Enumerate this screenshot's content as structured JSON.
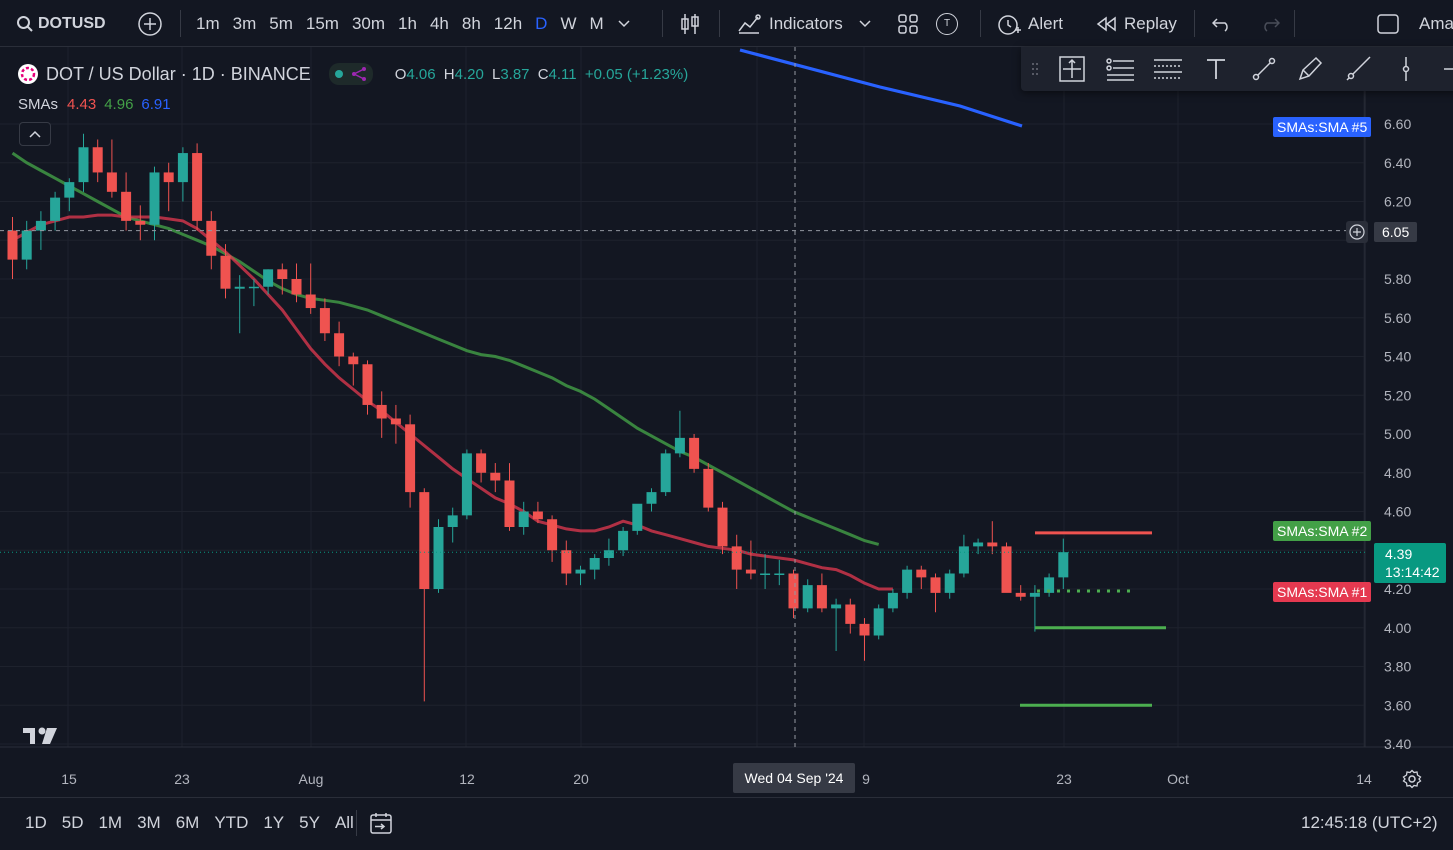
{
  "toolbar": {
    "symbol": "DOTUSD",
    "intervals": [
      "1m",
      "3m",
      "5m",
      "15m",
      "30m",
      "1h",
      "4h",
      "8h",
      "12h",
      "D",
      "W",
      "M"
    ],
    "active_interval": "D",
    "indicators_label": "Indicators",
    "alert_label": "Alert",
    "replay_label": "Replay",
    "t_badge": "T",
    "cut_label": "Ama"
  },
  "legend": {
    "title": "DOT / US Dollar · 1D · BINANCE",
    "o_key": "O",
    "o_val": "4.06",
    "h_key": "H",
    "h_val": "4.20",
    "l_key": "L",
    "l_val": "3.87",
    "c_key": "C",
    "c_val": "4.11",
    "change": "+0.05 (+1.23%)",
    "sma_label": "SMAs",
    "sma1": "4.43",
    "sma2": "4.96",
    "sma3": "6.91"
  },
  "colors": {
    "up": "#26a69a",
    "down": "#ef5350",
    "sma1": "#e53950",
    "sma2": "#43a047",
    "sma3": "#2962ff",
    "bg": "#131722",
    "grid": "#1e222d"
  },
  "price_axis": {
    "ticks": [
      "6.60",
      "6.40",
      "6.20",
      "6.05",
      "5.80",
      "5.60",
      "5.40",
      "5.20",
      "5.00",
      "4.80",
      "4.60",
      "4.39",
      "4.20",
      "4.00",
      "3.80",
      "3.60",
      "3.40"
    ],
    "crosshair_price": "6.05",
    "last_price": "4.39",
    "countdown": "13:14:42",
    "tag_sma5": "SMAs:SMA #5",
    "tag_sma2": "SMAs:SMA #2",
    "tag_sma1": "SMAs:SMA #1"
  },
  "time_axis": {
    "ticks": [
      "15",
      "23",
      "Aug",
      "12",
      "20",
      "9",
      "23",
      "Oct",
      "14"
    ],
    "crosshair_date": "Wed 04 Sep '24"
  },
  "bottom": {
    "ranges": [
      "1D",
      "5D",
      "1M",
      "3M",
      "6M",
      "YTD",
      "1Y",
      "5Y",
      "All"
    ],
    "clock": "12:45:18 (UTC+2)"
  },
  "chart_data": {
    "type": "candlestick",
    "symbol": "DOT / US Dollar",
    "timeframe": "1D",
    "exchange": "BINANCE",
    "ylim": [
      3.35,
      6.72
    ],
    "candles": [
      {
        "o": 6.05,
        "h": 6.12,
        "l": 5.8,
        "c": 5.9
      },
      {
        "o": 5.9,
        "h": 6.1,
        "l": 5.85,
        "c": 6.05
      },
      {
        "o": 6.05,
        "h": 6.15,
        "l": 5.95,
        "c": 6.1
      },
      {
        "o": 6.1,
        "h": 6.25,
        "l": 6.05,
        "c": 6.22
      },
      {
        "o": 6.22,
        "h": 6.32,
        "l": 6.15,
        "c": 6.3
      },
      {
        "o": 6.3,
        "h": 6.55,
        "l": 6.25,
        "c": 6.48
      },
      {
        "o": 6.48,
        "h": 6.52,
        "l": 6.3,
        "c": 6.35
      },
      {
        "o": 6.35,
        "h": 6.52,
        "l": 6.22,
        "c": 6.25
      },
      {
        "o": 6.25,
        "h": 6.35,
        "l": 6.05,
        "c": 6.1
      },
      {
        "o": 6.1,
        "h": 6.18,
        "l": 6.0,
        "c": 6.08
      },
      {
        "o": 6.08,
        "h": 6.38,
        "l": 6.0,
        "c": 6.35
      },
      {
        "o": 6.35,
        "h": 6.4,
        "l": 6.15,
        "c": 6.3
      },
      {
        "o": 6.3,
        "h": 6.48,
        "l": 6.2,
        "c": 6.45
      },
      {
        "o": 6.45,
        "h": 6.5,
        "l": 6.05,
        "c": 6.1
      },
      {
        "o": 6.1,
        "h": 6.15,
        "l": 5.85,
        "c": 5.92
      },
      {
        "o": 5.92,
        "h": 5.98,
        "l": 5.7,
        "c": 5.75
      },
      {
        "o": 5.75,
        "h": 5.82,
        "l": 5.52,
        "c": 5.76
      },
      {
        "o": 5.76,
        "h": 5.8,
        "l": 5.66,
        "c": 5.76
      },
      {
        "o": 5.76,
        "h": 5.85,
        "l": 5.72,
        "c": 5.85
      },
      {
        "o": 5.85,
        "h": 5.88,
        "l": 5.72,
        "c": 5.8
      },
      {
        "o": 5.8,
        "h": 5.88,
        "l": 5.68,
        "c": 5.72
      },
      {
        "o": 5.72,
        "h": 5.88,
        "l": 5.62,
        "c": 5.65
      },
      {
        "o": 5.65,
        "h": 5.7,
        "l": 5.48,
        "c": 5.52
      },
      {
        "o": 5.52,
        "h": 5.58,
        "l": 5.35,
        "c": 5.4
      },
      {
        "o": 5.4,
        "h": 5.42,
        "l": 5.25,
        "c": 5.36
      },
      {
        "o": 5.36,
        "h": 5.38,
        "l": 5.1,
        "c": 5.15
      },
      {
        "o": 5.15,
        "h": 5.22,
        "l": 4.98,
        "c": 5.08
      },
      {
        "o": 5.08,
        "h": 5.15,
        "l": 4.95,
        "c": 5.05
      },
      {
        "o": 5.05,
        "h": 5.1,
        "l": 4.62,
        "c": 4.7
      },
      {
        "o": 4.7,
        "h": 4.72,
        "l": 3.62,
        "c": 4.2
      },
      {
        "o": 4.2,
        "h": 4.56,
        "l": 4.18,
        "c": 4.52
      },
      {
        "o": 4.52,
        "h": 4.62,
        "l": 4.44,
        "c": 4.58
      },
      {
        "o": 4.58,
        "h": 4.92,
        "l": 4.56,
        "c": 4.9
      },
      {
        "o": 4.9,
        "h": 4.92,
        "l": 4.75,
        "c": 4.8
      },
      {
        "o": 4.8,
        "h": 4.85,
        "l": 4.7,
        "c": 4.76
      },
      {
        "o": 4.76,
        "h": 4.85,
        "l": 4.5,
        "c": 4.52
      },
      {
        "o": 4.52,
        "h": 4.65,
        "l": 4.48,
        "c": 4.6
      },
      {
        "o": 4.6,
        "h": 4.65,
        "l": 4.54,
        "c": 4.56
      },
      {
        "o": 4.56,
        "h": 4.58,
        "l": 4.34,
        "c": 4.4
      },
      {
        "o": 4.4,
        "h": 4.45,
        "l": 4.22,
        "c": 4.28
      },
      {
        "o": 4.28,
        "h": 4.32,
        "l": 4.22,
        "c": 4.3
      },
      {
        "o": 4.3,
        "h": 4.38,
        "l": 4.25,
        "c": 4.36
      },
      {
        "o": 4.36,
        "h": 4.46,
        "l": 4.32,
        "c": 4.4
      },
      {
        "o": 4.4,
        "h": 4.52,
        "l": 4.37,
        "c": 4.5
      },
      {
        "o": 4.5,
        "h": 4.62,
        "l": 4.48,
        "c": 4.64
      },
      {
        "o": 4.64,
        "h": 4.72,
        "l": 4.6,
        "c": 4.7
      },
      {
        "o": 4.7,
        "h": 4.92,
        "l": 4.68,
        "c": 4.9
      },
      {
        "o": 4.9,
        "h": 5.12,
        "l": 4.88,
        "c": 4.98
      },
      {
        "o": 4.98,
        "h": 5.0,
        "l": 4.8,
        "c": 4.82
      },
      {
        "o": 4.82,
        "h": 4.85,
        "l": 4.6,
        "c": 4.62
      },
      {
        "o": 4.62,
        "h": 4.65,
        "l": 4.38,
        "c": 4.42
      },
      {
        "o": 4.42,
        "h": 4.48,
        "l": 4.2,
        "c": 4.3
      },
      {
        "o": 4.3,
        "h": 4.45,
        "l": 4.25,
        "c": 4.28
      },
      {
        "o": 4.28,
        "h": 4.38,
        "l": 4.2,
        "c": 4.28
      },
      {
        "o": 4.28,
        "h": 4.35,
        "l": 4.22,
        "c": 4.28
      },
      {
        "o": 4.28,
        "h": 4.3,
        "l": 4.05,
        "c": 4.1
      },
      {
        "o": 4.1,
        "h": 4.25,
        "l": 4.08,
        "c": 4.22
      },
      {
        "o": 4.22,
        "h": 4.28,
        "l": 4.08,
        "c": 4.1
      },
      {
        "o": 4.1,
        "h": 4.15,
        "l": 3.88,
        "c": 4.12
      },
      {
        "o": 4.12,
        "h": 4.15,
        "l": 3.97,
        "c": 4.02
      },
      {
        "o": 4.02,
        "h": 4.05,
        "l": 3.83,
        "c": 3.96
      },
      {
        "o": 3.96,
        "h": 4.12,
        "l": 3.94,
        "c": 4.1
      },
      {
        "o": 4.1,
        "h": 4.2,
        "l": 4.08,
        "c": 4.18
      },
      {
        "o": 4.18,
        "h": 4.32,
        "l": 4.15,
        "c": 4.3
      },
      {
        "o": 4.3,
        "h": 4.32,
        "l": 4.2,
        "c": 4.26
      },
      {
        "o": 4.26,
        "h": 4.28,
        "l": 4.08,
        "c": 4.18
      },
      {
        "o": 4.18,
        "h": 4.3,
        "l": 4.15,
        "c": 4.28
      },
      {
        "o": 4.28,
        "h": 4.48,
        "l": 4.26,
        "c": 4.42
      },
      {
        "o": 4.42,
        "h": 4.46,
        "l": 4.38,
        "c": 4.44
      },
      {
        "o": 4.44,
        "h": 4.55,
        "l": 4.38,
        "c": 4.42
      },
      {
        "o": 4.42,
        "h": 4.44,
        "l": 4.2,
        "c": 4.18
      },
      {
        "o": 4.18,
        "h": 4.22,
        "l": 4.14,
        "c": 4.16
      },
      {
        "o": 4.16,
        "h": 4.22,
        "l": 3.98,
        "c": 4.18
      },
      {
        "o": 4.18,
        "h": 4.28,
        "l": 4.16,
        "c": 4.26
      },
      {
        "o": 4.26,
        "h": 4.46,
        "l": 4.2,
        "c": 4.39
      }
    ],
    "sma1": [
      6.0,
      6.04,
      6.08,
      6.1,
      6.12,
      6.12,
      6.13,
      6.13,
      6.12,
      6.12,
      6.12,
      6.11,
      6.1,
      6.06,
      6.0,
      5.94,
      5.87,
      5.8,
      5.72,
      5.64,
      5.54,
      5.44,
      5.36,
      5.29,
      5.23,
      5.17,
      5.12,
      5.06,
      5.0,
      4.94,
      4.88,
      4.82,
      4.77,
      4.72,
      4.67,
      4.64,
      4.6,
      4.55,
      4.53,
      4.51,
      4.5,
      4.5,
      4.52,
      4.55,
      4.53,
      4.5,
      4.48,
      4.46,
      4.44,
      4.42,
      4.41,
      4.4,
      4.38,
      4.37,
      4.36,
      4.35,
      4.33,
      4.31,
      4.3,
      4.27,
      4.23,
      4.2,
      4.2
    ],
    "sma2": [
      6.45,
      6.4,
      6.36,
      6.32,
      6.28,
      6.24,
      6.2,
      6.16,
      6.12,
      6.1,
      6.08,
      6.06,
      6.03,
      6.0,
      5.97,
      5.93,
      5.89,
      5.84,
      5.79,
      5.75,
      5.72,
      5.7,
      5.69,
      5.68,
      5.66,
      5.64,
      5.61,
      5.58,
      5.55,
      5.52,
      5.49,
      5.46,
      5.43,
      5.41,
      5.4,
      5.38,
      5.35,
      5.32,
      5.29,
      5.25,
      5.22,
      5.18,
      5.13,
      5.08,
      5.03,
      4.99,
      4.95,
      4.91,
      4.88,
      4.84,
      4.8,
      4.76,
      4.72,
      4.68,
      4.64,
      4.6,
      4.57,
      4.54,
      4.51,
      4.48,
      4.45,
      4.43
    ],
    "sma5_visible_end": 6.58
  }
}
